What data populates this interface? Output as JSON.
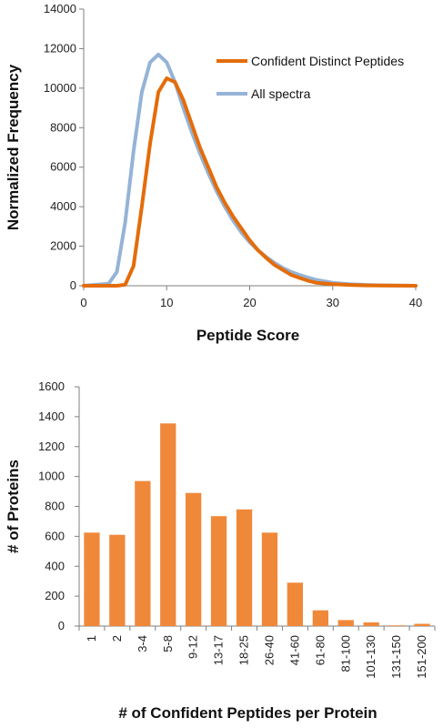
{
  "chart_data": [
    {
      "type": "line",
      "title": "",
      "xlabel": "Peptide Score",
      "ylabel": "Normalized Frequency",
      "xlim": [
        0,
        40
      ],
      "ylim": [
        0,
        14000
      ],
      "xticks": [
        0,
        10,
        20,
        30,
        40
      ],
      "yticks": [
        0,
        2000,
        4000,
        6000,
        8000,
        10000,
        12000,
        14000
      ],
      "grid": false,
      "legend_position": "top-right",
      "series": [
        {
          "name": "Confident Distinct Peptides",
          "color": "#E46C0A",
          "x": [
            0,
            3,
            4,
            5,
            6,
            7,
            8,
            9,
            10,
            11,
            12,
            13,
            14,
            15,
            16,
            17,
            18,
            19,
            20,
            21,
            22,
            23,
            24,
            25,
            26,
            27,
            28,
            30,
            32,
            34,
            36,
            40
          ],
          "y": [
            0,
            0,
            0,
            50,
            1000,
            4000,
            7200,
            9800,
            10500,
            10300,
            9400,
            8200,
            7000,
            6000,
            5000,
            4200,
            3500,
            2900,
            2300,
            1800,
            1400,
            1050,
            800,
            550,
            400,
            260,
            150,
            80,
            40,
            20,
            10,
            0
          ]
        },
        {
          "name": "All spectra",
          "color": "#95B3D7",
          "x": [
            0,
            3,
            4,
            5,
            6,
            7,
            8,
            9,
            10,
            11,
            12,
            13,
            14,
            15,
            16,
            17,
            18,
            19,
            20,
            21,
            22,
            23,
            24,
            25,
            26,
            27,
            28,
            30,
            32,
            34,
            36,
            40
          ],
          "y": [
            0,
            100,
            700,
            3200,
            6800,
            9800,
            11300,
            11700,
            11300,
            10300,
            9000,
            7800,
            6700,
            5700,
            4800,
            4000,
            3300,
            2700,
            2200,
            1800,
            1450,
            1150,
            900,
            700,
            550,
            420,
            300,
            150,
            80,
            40,
            20,
            0
          ]
        }
      ]
    },
    {
      "type": "bar",
      "title": "",
      "xlabel": "# of Confident Peptides per Protein",
      "ylabel": "# of Proteins",
      "ylim": [
        0,
        1600
      ],
      "yticks": [
        0,
        200,
        400,
        600,
        800,
        1000,
        1200,
        1400,
        1600
      ],
      "grid": false,
      "color": "#F0883A",
      "categories": [
        "1",
        "2",
        "3-4",
        "5-8",
        "9-12",
        "13-17",
        "18-25",
        "26-40",
        "41-60",
        "61-80",
        "81-100",
        "101-130",
        "131-150",
        "151-200"
      ],
      "values": [
        625,
        610,
        970,
        1355,
        890,
        735,
        780,
        625,
        290,
        105,
        40,
        25,
        5,
        15
      ]
    }
  ]
}
